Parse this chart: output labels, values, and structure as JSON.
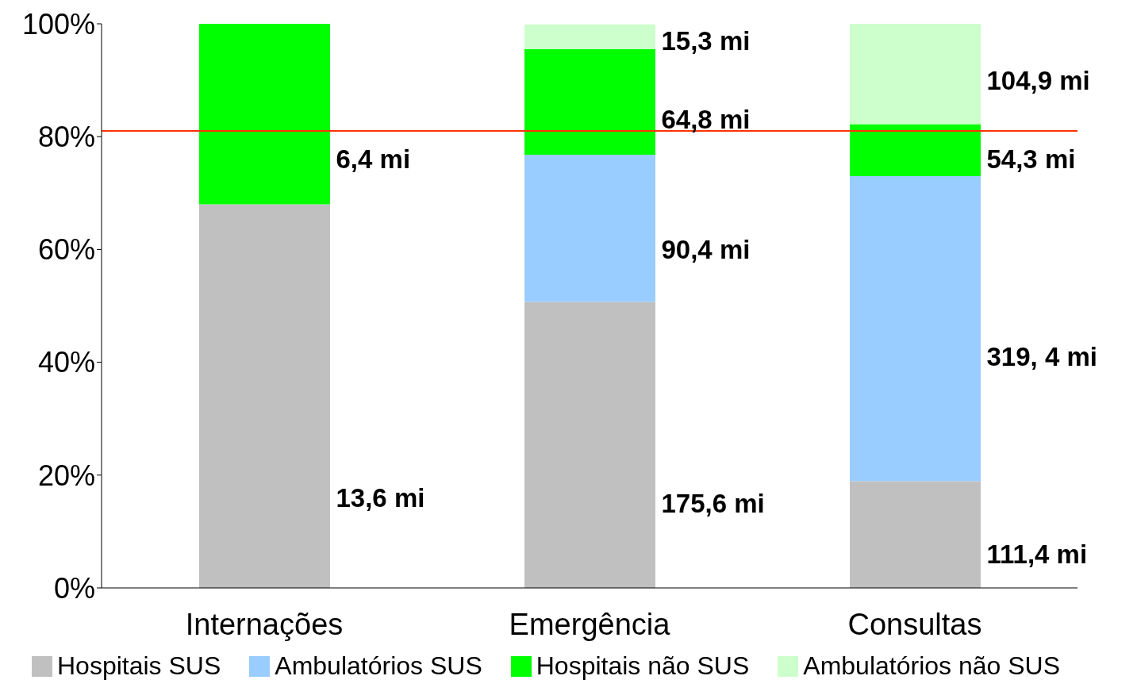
{
  "chart_data": {
    "type": "bar",
    "stacked": true,
    "categories": [
      "Internações",
      "Emergência",
      "Consultas"
    ],
    "series": [
      {
        "name": "Hospitais SUS",
        "color": "#c0c0c0",
        "values": [
          68.0,
          50.7,
          18.9
        ]
      },
      {
        "name": "Ambulatórios SUS",
        "color": "#99ccff",
        "values": [
          null,
          26.1,
          54.1
        ]
      },
      {
        "name": "Hospitais não SUS",
        "color": "#00ff00",
        "values": [
          32.0,
          18.7,
          9.2
        ]
      },
      {
        "name": "Ambulatórios não SUS",
        "color": "#ccffcc",
        "values": [
          null,
          4.4,
          17.8
        ]
      }
    ],
    "ylim": [
      0,
      100
    ],
    "yticks": [
      {
        "value": 0,
        "label": "0%"
      },
      {
        "value": 20,
        "label": "20%"
      },
      {
        "value": 40,
        "label": "40%"
      },
      {
        "value": 60,
        "label": "60%"
      },
      {
        "value": 80,
        "label": "80%"
      },
      {
        "value": 100,
        "label": "100%"
      }
    ],
    "ref_lines": [
      {
        "axis": "y",
        "value": 81,
        "color": "#ff3300"
      }
    ],
    "annotations": [
      "13,6 mi",
      "6,4 mi",
      "175,6 mi",
      "90,4 mi",
      "64,8 mi",
      "15,3 mi",
      "111,4 mi",
      "319, 4 mi",
      "54,3 mi",
      "104,9 mi"
    ],
    "grid": false,
    "legend": "bottom"
  }
}
